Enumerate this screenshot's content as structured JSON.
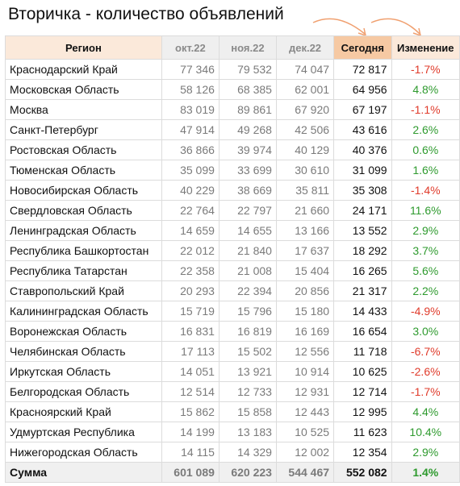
{
  "title": "Вторичка - количество объявлений",
  "colors": {
    "header_orange": "#f6c9a3",
    "header_light_orange": "#fbe9da",
    "header_gray": "#efefef",
    "positive": "#2e9a2e",
    "negative": "#e03b2b",
    "arrow": "#f0a070"
  },
  "headers": {
    "region": "Регион",
    "oct": "окт.22",
    "nov": "ноя.22",
    "dec": "дек.22",
    "today": "Сегодня",
    "change": "Изменение"
  },
  "rows": [
    {
      "region": "Краснодарский Край",
      "oct": "77 346",
      "nov": "79 532",
      "dec": "74 047",
      "today": "72 817",
      "change": "-1.7%",
      "sign": "neg"
    },
    {
      "region": "Московская Область",
      "oct": "58 126",
      "nov": "68 385",
      "dec": "62 001",
      "today": "64 956",
      "change": "4.8%",
      "sign": "pos"
    },
    {
      "region": "Москва",
      "oct": "83 019",
      "nov": "89 861",
      "dec": "67 920",
      "today": "67 197",
      "change": "-1.1%",
      "sign": "neg"
    },
    {
      "region": "Санкт-Петербург",
      "oct": "47 914",
      "nov": "49 268",
      "dec": "42 506",
      "today": "43 616",
      "change": "2.6%",
      "sign": "pos"
    },
    {
      "region": "Ростовская Область",
      "oct": "36 866",
      "nov": "39 974",
      "dec": "40 129",
      "today": "40 376",
      "change": "0.6%",
      "sign": "pos"
    },
    {
      "region": "Тюменская Область",
      "oct": "35 099",
      "nov": "33 699",
      "dec": "30 610",
      "today": "31 099",
      "change": "1.6%",
      "sign": "pos"
    },
    {
      "region": "Новосибирская Область",
      "oct": "40 229",
      "nov": "38 669",
      "dec": "35 811",
      "today": "35 308",
      "change": "-1.4%",
      "sign": "neg"
    },
    {
      "region": "Свердловская Область",
      "oct": "22 764",
      "nov": "22 797",
      "dec": "21 660",
      "today": "24 171",
      "change": "11.6%",
      "sign": "pos"
    },
    {
      "region": "Ленинградская Область",
      "oct": "14 659",
      "nov": "14 655",
      "dec": "13 166",
      "today": "13 552",
      "change": "2.9%",
      "sign": "pos"
    },
    {
      "region": "Республика Башкортостан",
      "oct": "22 012",
      "nov": "21 840",
      "dec": "17 637",
      "today": "18 292",
      "change": "3.7%",
      "sign": "pos"
    },
    {
      "region": "Республика Татарстан",
      "oct": "22 358",
      "nov": "21 008",
      "dec": "15 404",
      "today": "16 265",
      "change": "5.6%",
      "sign": "pos"
    },
    {
      "region": "Ставропольский Край",
      "oct": "20 293",
      "nov": "22 394",
      "dec": "20 856",
      "today": "21 317",
      "change": "2.2%",
      "sign": "pos"
    },
    {
      "region": "Калининградская Область",
      "oct": "15 719",
      "nov": "15 796",
      "dec": "15 180",
      "today": "14 433",
      "change": "-4.9%",
      "sign": "neg"
    },
    {
      "region": "Воронежская Область",
      "oct": "16 831",
      "nov": "16 819",
      "dec": "16 169",
      "today": "16 654",
      "change": "3.0%",
      "sign": "pos"
    },
    {
      "region": "Челябинская Область",
      "oct": "17 113",
      "nov": "15 502",
      "dec": "12 556",
      "today": "11 718",
      "change": "-6.7%",
      "sign": "neg"
    },
    {
      "region": "Иркутская Область",
      "oct": "14 051",
      "nov": "13 921",
      "dec": "10 914",
      "today": "10 625",
      "change": "-2.6%",
      "sign": "neg"
    },
    {
      "region": "Белгородская Область",
      "oct": "12 514",
      "nov": "12 733",
      "dec": "12 931",
      "today": "12 714",
      "change": "-1.7%",
      "sign": "neg"
    },
    {
      "region": "Красноярский Край",
      "oct": "15 862",
      "nov": "15 858",
      "dec": "12 443",
      "today": "12 995",
      "change": "4.4%",
      "sign": "pos"
    },
    {
      "region": "Удмуртская Республика",
      "oct": "14 199",
      "nov": "13 183",
      "dec": "10 525",
      "today": "11 623",
      "change": "10.4%",
      "sign": "pos"
    },
    {
      "region": "Нижегородская Область",
      "oct": "14 115",
      "nov": "14 329",
      "dec": "12 002",
      "today": "12 354",
      "change": "2.9%",
      "sign": "pos"
    }
  ],
  "total": {
    "label": "Сумма",
    "oct": "601 089",
    "nov": "620 223",
    "dec": "544 467",
    "today": "552 082",
    "change": "1.4%",
    "sign": "pos"
  }
}
